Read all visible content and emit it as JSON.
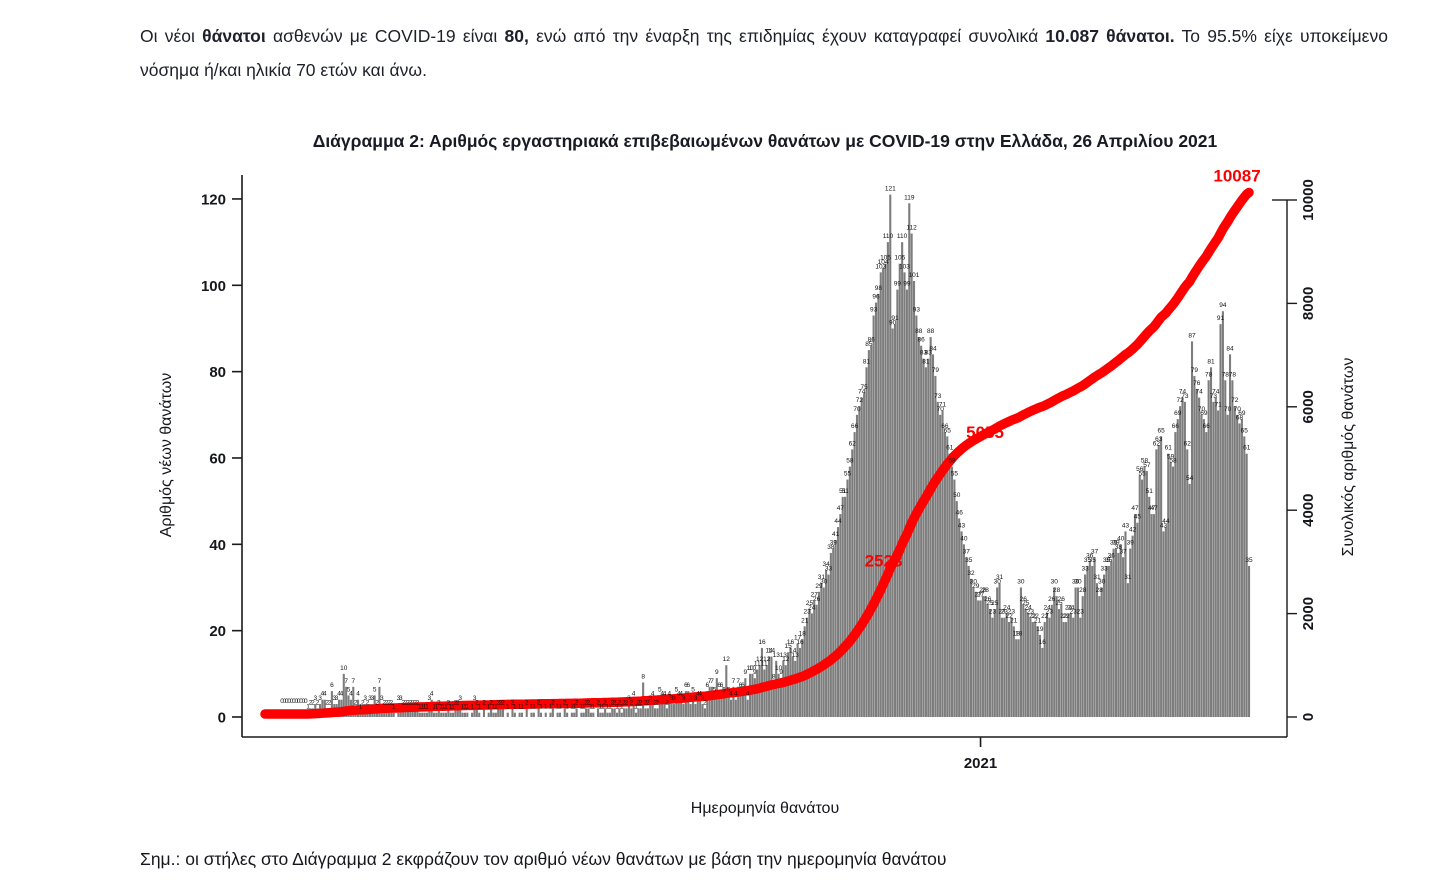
{
  "intro": {
    "segments": [
      {
        "text": "Οι νέοι ",
        "bold": false
      },
      {
        "text": "θάνατοι",
        "bold": true
      },
      {
        "text": " ασθενών με COVID-19 είναι ",
        "bold": false
      },
      {
        "text": "80,",
        "bold": true
      },
      {
        "text": " ενώ από την έναρξη της επιδημίας έχουν καταγραφεί συνολικά ",
        "bold": false
      },
      {
        "text": "10.087 θάνατοι.",
        "bold": true
      },
      {
        "text": " Το 95.5% είχε υποκείμενο νόσημα ή/και ηλικία 70 ετών και άνω.",
        "bold": false
      }
    ]
  },
  "note": {
    "text": "Σημ.: οι στήλες στο Διάγραμμα 2 εκφράζουν τον αριθμό νέων θανάτων με βάση την ημερομηνία θανάτου"
  },
  "chart_data": {
    "type": "bar",
    "title": "Διάγραμμα 2: Αριθμός εργαστηριακά επιβεβαιωμένων θανάτων με COVID-19 στην Ελλάδα, 26 Απριλίου 2021",
    "xlabel": "Ημερομηνία θανάτου",
    "ylabel_left": "Αριθμός νέων θανάτων",
    "ylabel_right": "Συνολικός αριθμός θανάτων",
    "left_axis_ticks": [
      0,
      20,
      40,
      60,
      80,
      100,
      120
    ],
    "right_axis_ticks": [
      0,
      2000,
      4000,
      6000,
      8000,
      10000
    ],
    "ylim_left": [
      0,
      120
    ],
    "ylim_right": [
      0,
      10000
    ],
    "grid": false,
    "legend": "none",
    "x_tick": {
      "label": "2021",
      "index": 294
    },
    "bar_color": "#7d7d7d",
    "bar_label_color": "#111111",
    "line_color": "#ff0000",
    "axis_color": "#1a1a1a",
    "final_total": 10087,
    "milestones": [
      {
        "text": "2528",
        "value": 2528,
        "side": "left"
      },
      {
        "text": "5055",
        "value": 5055,
        "side": "right"
      },
      {
        "text": "10087",
        "value": 10087,
        "side": "end"
      }
    ],
    "daily_values": [
      0,
      0,
      0,
      0,
      0,
      0,
      0,
      0,
      0,
      0,
      0,
      1,
      2,
      2,
      3,
      2,
      3,
      4,
      4,
      2,
      2,
      6,
      3,
      3,
      4,
      4,
      10,
      7,
      5,
      4,
      7,
      2,
      4,
      1,
      2,
      3,
      2,
      3,
      3,
      5,
      2,
      7,
      3,
      2,
      2,
      2,
      2,
      1,
      0,
      3,
      3,
      2,
      2,
      2,
      2,
      2,
      2,
      2,
      1,
      1,
      1,
      1,
      3,
      4,
      1,
      1,
      2,
      1,
      1,
      1,
      2,
      1,
      1,
      2,
      2,
      3,
      1,
      1,
      1,
      0,
      1,
      3,
      2,
      1,
      0,
      2,
      0,
      1,
      2,
      1,
      1,
      2,
      2,
      2,
      0,
      1,
      0,
      2,
      1,
      0,
      1,
      1,
      0,
      2,
      0,
      1,
      1,
      0,
      2,
      1,
      0,
      1,
      0,
      1,
      2,
      0,
      1,
      1,
      0,
      2,
      1,
      0,
      1,
      1,
      2,
      0,
      1,
      1,
      2,
      2,
      1,
      1,
      0,
      2,
      1,
      1,
      2,
      1,
      1,
      2,
      2,
      1,
      2,
      1,
      2,
      2,
      3,
      2,
      4,
      1,
      2,
      2,
      8,
      2,
      2,
      3,
      4,
      2,
      2,
      5,
      4,
      4,
      2,
      4,
      3,
      3,
      5,
      4,
      4,
      3,
      6,
      6,
      3,
      5,
      3,
      4,
      4,
      3,
      2,
      6,
      7,
      7,
      5,
      9,
      6,
      6,
      5,
      12,
      5,
      4,
      7,
      4,
      7,
      6,
      6,
      9,
      4,
      10,
      10,
      9,
      11,
      12,
      16,
      11,
      12,
      14,
      14,
      8,
      13,
      10,
      9,
      13,
      12,
      15,
      16,
      14,
      13,
      17,
      16,
      18,
      21,
      23,
      25,
      24,
      27,
      26,
      29,
      31,
      30,
      34,
      33,
      38,
      39,
      41,
      44,
      47,
      51,
      51,
      55,
      58,
      62,
      66,
      70,
      72,
      74,
      75,
      81,
      85,
      86,
      93,
      96,
      98,
      103,
      104,
      105,
      110,
      121,
      90,
      91,
      99,
      105,
      110,
      103,
      99,
      119,
      112,
      101,
      93,
      88,
      86,
      83,
      81,
      83,
      88,
      84,
      79,
      73,
      70,
      71,
      66,
      65,
      61,
      58,
      55,
      50,
      46,
      43,
      40,
      37,
      35,
      32,
      30,
      29,
      27,
      27,
      28,
      28,
      26,
      25,
      23,
      25,
      30,
      31,
      23,
      23,
      24,
      22,
      23,
      21,
      18,
      18,
      30,
      26,
      25,
      24,
      23,
      22,
      22,
      21,
      19,
      16,
      22,
      24,
      23,
      26,
      30,
      28,
      25,
      26,
      22,
      22,
      24,
      24,
      23,
      30,
      30,
      23,
      28,
      33,
      35,
      36,
      35,
      37,
      31,
      28,
      30,
      33,
      35,
      35,
      36,
      39,
      39,
      38,
      40,
      37,
      43,
      31,
      39,
      42,
      47,
      45,
      56,
      55,
      58,
      57,
      51,
      47,
      47,
      62,
      63,
      65,
      43,
      44,
      61,
      59,
      58,
      66,
      69,
      72,
      74,
      73,
      62,
      54,
      87,
      79,
      76,
      74,
      70,
      69,
      66,
      78,
      81,
      73,
      74,
      71,
      91,
      94,
      78,
      70,
      84,
      78,
      72,
      70,
      68,
      69,
      65,
      61,
      35
    ]
  }
}
